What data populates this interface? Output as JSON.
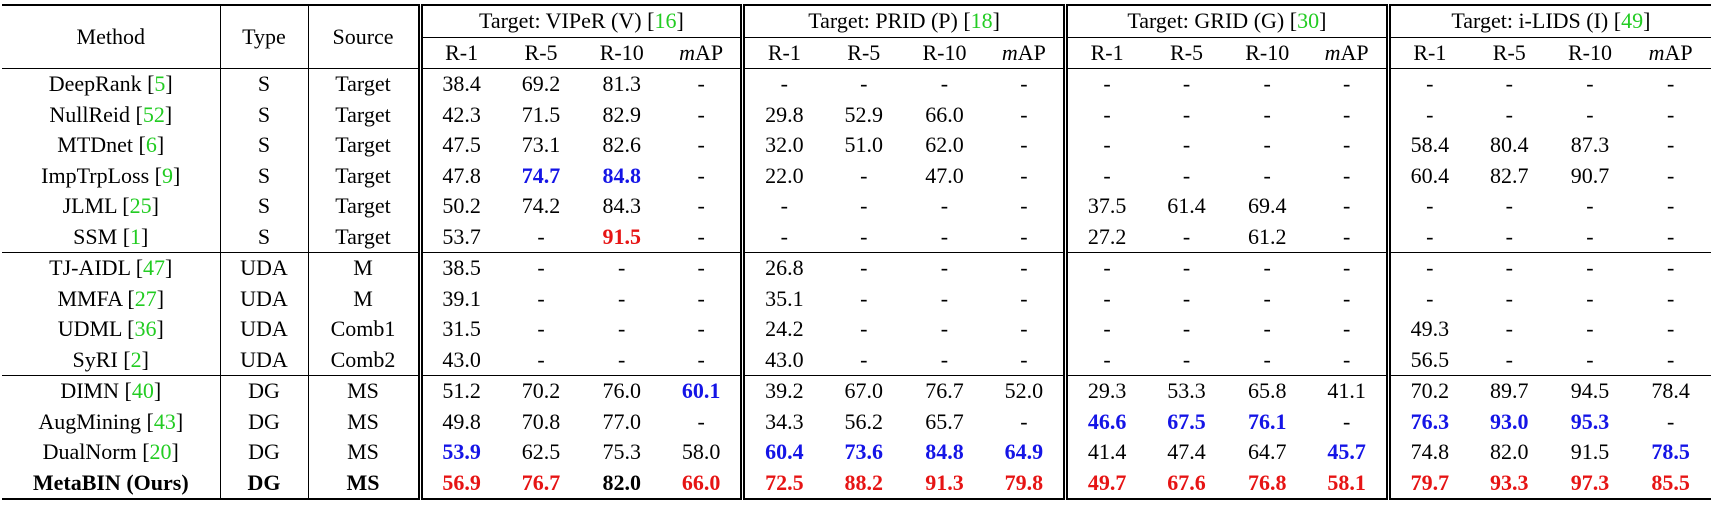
{
  "table": {
    "header": {
      "method": "Method",
      "type": "Type",
      "source": "Source",
      "target_prefix": "Target: ",
      "groups": [
        {
          "name": "VIPeR (V)",
          "ref": "16"
        },
        {
          "name": "PRID (P)",
          "ref": "18"
        },
        {
          "name": "GRID (G)",
          "ref": "30"
        },
        {
          "name": "i-LIDS (I)",
          "ref": "49"
        }
      ],
      "metrics": [
        "R-1",
        "R-5",
        "R-10",
        "mAP"
      ]
    },
    "cite_open": "[",
    "cite_close": "]",
    "rows": [
      {
        "method": "DeepRank",
        "ref": "5",
        "type": "S",
        "source": "Target",
        "values": [
          "38.4",
          "69.2",
          "81.3",
          "-",
          "-",
          "-",
          "-",
          "-",
          "-",
          "-",
          "-",
          "-",
          "-",
          "-",
          "-",
          "-"
        ]
      },
      {
        "method": "NullReid",
        "ref": "52",
        "type": "S",
        "source": "Target",
        "values": [
          "42.3",
          "71.5",
          "82.9",
          "-",
          "29.8",
          "52.9",
          "66.0",
          "-",
          "-",
          "-",
          "-",
          "-",
          "-",
          "-",
          "-",
          "-"
        ]
      },
      {
        "method": "MTDnet",
        "ref": "6",
        "type": "S",
        "source": "Target",
        "values": [
          "47.5",
          "73.1",
          "82.6",
          "-",
          "32.0",
          "51.0",
          "62.0",
          "-",
          "-",
          "-",
          "-",
          "-",
          "58.4",
          "80.4",
          "87.3",
          "-"
        ]
      },
      {
        "method": "ImpTrpLoss",
        "ref": "9",
        "type": "S",
        "source": "Target",
        "values": [
          "47.8",
          "74.7",
          "84.8",
          "-",
          "22.0",
          "-",
          "47.0",
          "-",
          "-",
          "-",
          "-",
          "-",
          "60.4",
          "82.7",
          "90.7",
          "-"
        ]
      },
      {
        "method": "JLML",
        "ref": "25",
        "type": "S",
        "source": "Target",
        "values": [
          "50.2",
          "74.2",
          "84.3",
          "-",
          "-",
          "-",
          "-",
          "-",
          "37.5",
          "61.4",
          "69.4",
          "-",
          "-",
          "-",
          "-",
          "-"
        ]
      },
      {
        "method": "SSM",
        "ref": "1",
        "type": "S",
        "source": "Target",
        "values": [
          "53.7",
          "-",
          "91.5",
          "-",
          "-",
          "-",
          "-",
          "-",
          "27.2",
          "-",
          "61.2",
          "-",
          "-",
          "-",
          "-",
          "-"
        ]
      },
      {
        "method": "TJ-AIDL",
        "ref": "47",
        "type": "UDA",
        "source": "M",
        "values": [
          "38.5",
          "-",
          "-",
          "-",
          "26.8",
          "-",
          "-",
          "-",
          "-",
          "-",
          "-",
          "-",
          "-",
          "-",
          "-",
          "-"
        ]
      },
      {
        "method": "MMFA",
        "ref": "27",
        "type": "UDA",
        "source": "M",
        "values": [
          "39.1",
          "-",
          "-",
          "-",
          "35.1",
          "-",
          "-",
          "-",
          "-",
          "-",
          "-",
          "-",
          "-",
          "-",
          "-",
          "-"
        ]
      },
      {
        "method": "UDML",
        "ref": "36",
        "type": "UDA",
        "source": "Comb1",
        "values": [
          "31.5",
          "-",
          "-",
          "-",
          "24.2",
          "-",
          "-",
          "-",
          "-",
          "-",
          "-",
          "-",
          "49.3",
          "-",
          "-",
          "-"
        ]
      },
      {
        "method": "SyRI",
        "ref": "2",
        "type": "UDA",
        "source": "Comb2",
        "values": [
          "43.0",
          "-",
          "-",
          "-",
          "43.0",
          "-",
          "-",
          "-",
          "-",
          "-",
          "-",
          "-",
          "56.5",
          "-",
          "-",
          "-"
        ]
      },
      {
        "method": "DIMN",
        "ref": "40",
        "type": "DG",
        "source": "MS",
        "values": [
          "51.2",
          "70.2",
          "76.0",
          "60.1",
          "39.2",
          "67.0",
          "76.7",
          "52.0",
          "29.3",
          "53.3",
          "65.8",
          "41.1",
          "70.2",
          "89.7",
          "94.5",
          "78.4"
        ]
      },
      {
        "method": "AugMining",
        "ref": "43",
        "type": "DG",
        "source": "MS",
        "values": [
          "49.8",
          "70.8",
          "77.0",
          "-",
          "34.3",
          "56.2",
          "65.7",
          "-",
          "46.6",
          "67.5",
          "76.1",
          "-",
          "76.3",
          "93.0",
          "95.3",
          "-"
        ]
      },
      {
        "method": "DualNorm",
        "ref": "20",
        "type": "DG",
        "source": "MS",
        "values": [
          "53.9",
          "62.5",
          "75.3",
          "58.0",
          "60.4",
          "73.6",
          "84.8",
          "64.9",
          "41.4",
          "47.4",
          "64.7",
          "45.7",
          "74.8",
          "82.0",
          "91.5",
          "78.5"
        ]
      },
      {
        "method": "MetaBIN (Ours)",
        "type": "DG",
        "source": "MS",
        "values": [
          "56.9",
          "76.7",
          "82.0",
          "66.0",
          "72.5",
          "88.2",
          "91.3",
          "79.8",
          "49.7",
          "67.6",
          "76.8",
          "58.1",
          "79.7",
          "93.3",
          "97.3",
          "85.5"
        ]
      }
    ],
    "section_breaks": [
      6,
      10
    ],
    "bold_rows": [
      13
    ],
    "cite_color": "#22cc22",
    "highlights": [
      {
        "color": "#1414e6",
        "cells": [
          [
            3,
            1
          ],
          [
            3,
            2
          ],
          [
            10,
            3
          ],
          [
            11,
            8
          ],
          [
            11,
            9
          ],
          [
            11,
            10
          ],
          [
            11,
            12
          ],
          [
            11,
            13
          ],
          [
            11,
            14
          ],
          [
            12,
            0
          ],
          [
            12,
            4
          ],
          [
            12,
            5
          ],
          [
            12,
            6
          ],
          [
            12,
            7
          ],
          [
            12,
            11
          ],
          [
            12,
            15
          ]
        ]
      },
      {
        "color": "#e61414",
        "cells": [
          [
            5,
            2
          ],
          [
            13,
            0
          ],
          [
            13,
            1
          ],
          [
            13,
            3
          ],
          [
            13,
            4
          ],
          [
            13,
            5
          ],
          [
            13,
            6
          ],
          [
            13,
            7
          ],
          [
            13,
            8
          ],
          [
            13,
            9
          ],
          [
            13,
            10
          ],
          [
            13,
            11
          ],
          [
            13,
            12
          ],
          [
            13,
            13
          ],
          [
            13,
            14
          ],
          [
            13,
            15
          ]
        ]
      }
    ]
  }
}
